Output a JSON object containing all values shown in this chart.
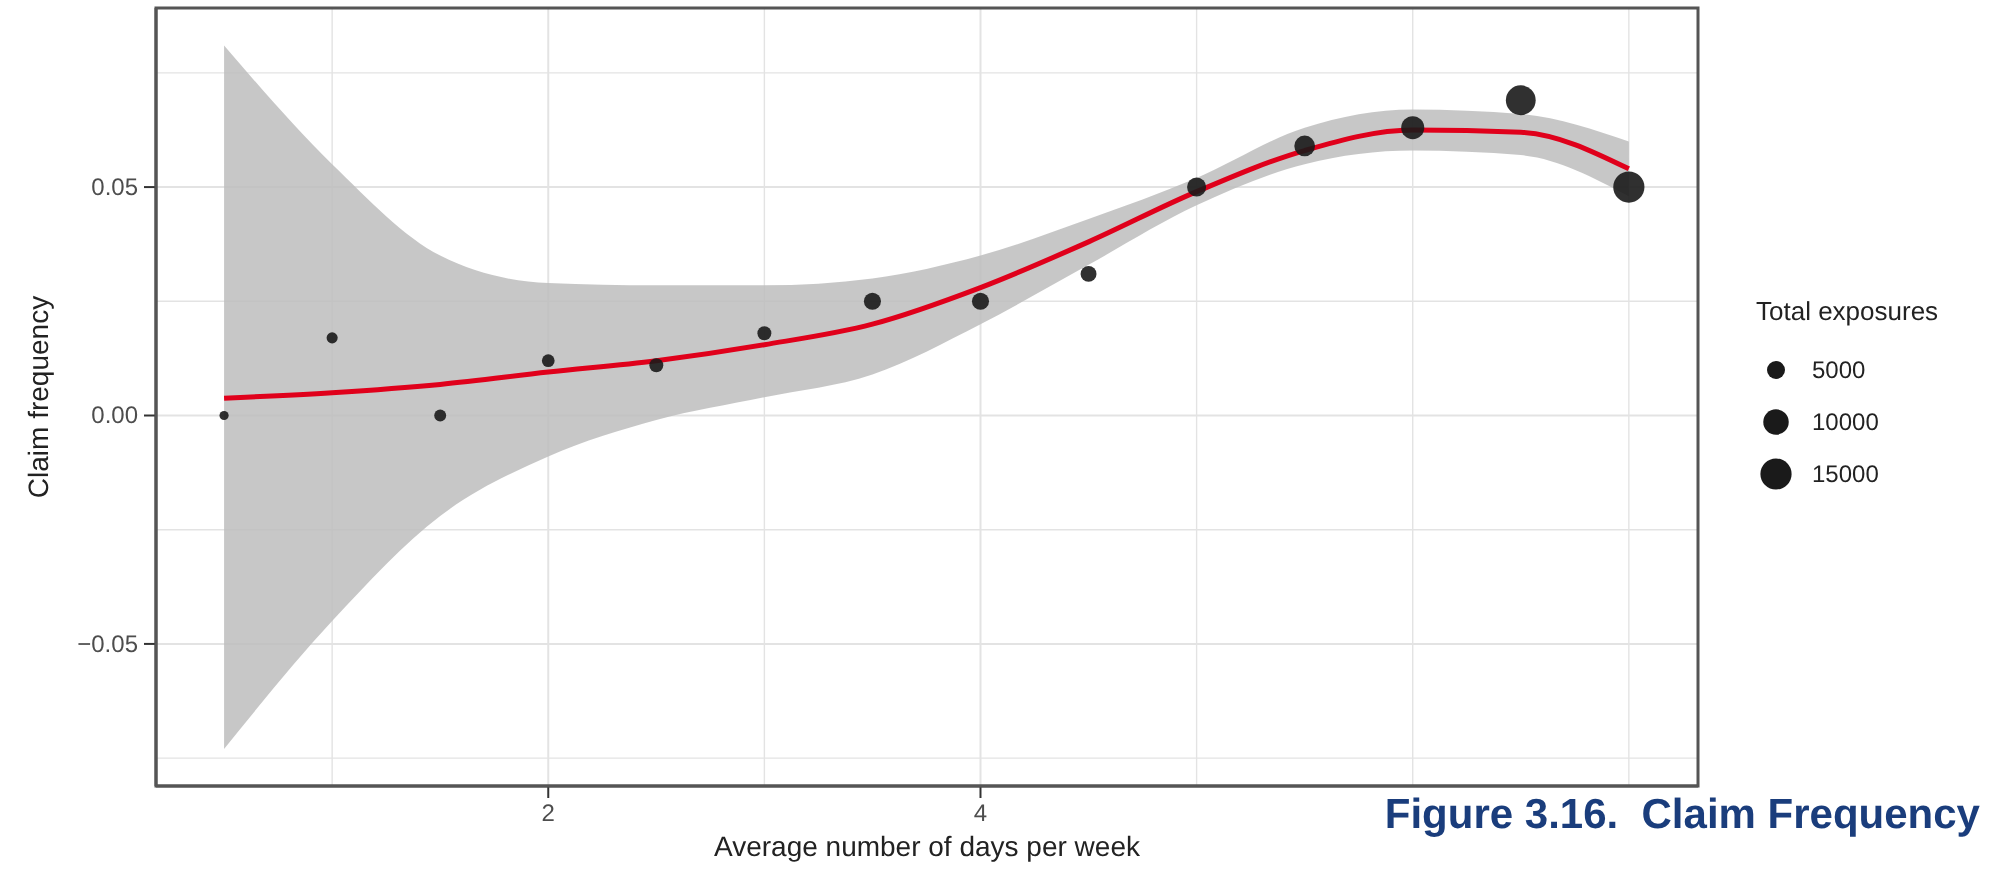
{
  "chart_data": {
    "type": "bubble",
    "title": "Figure 3.16.  Claim Frequency",
    "xlabel": "Average number of days per week",
    "ylabel": "Claim frequency",
    "legend_title": "Total exposures",
    "xlim": [
      0.185,
      7.32
    ],
    "ylim": [
      -0.0811,
      0.0892
    ],
    "xticks": [
      {
        "value": 1,
        "label": null
      },
      2,
      {
        "value": 3,
        "label": null
      },
      4,
      {
        "value": 5,
        "label": null
      },
      {
        "value": 6,
        "label": null
      },
      {
        "value": 7,
        "label": null
      }
    ],
    "yticks": [
      {
        "value": -0.075,
        "label": null
      },
      {
        "value": -0.05,
        "label": "−0.05"
      },
      {
        "value": -0.025,
        "label": null
      },
      {
        "value": 0,
        "label": "0.00"
      },
      {
        "value": 0.025,
        "label": null
      },
      {
        "value": 0.05,
        "label": "0.05"
      },
      {
        "value": 0.075,
        "label": null
      }
    ],
    "grid": true,
    "size_legend": [
      5000,
      10000,
      15000
    ],
    "series": [
      {
        "type": "line",
        "color": "#e0001b",
        "x": [
          0.5,
          1,
          1.5,
          2,
          2.5,
          3,
          3.5,
          4,
          4.5,
          5,
          5.5,
          6,
          6.5,
          7
        ],
        "values": [
          0.0038,
          0.005,
          0.0068,
          0.0095,
          0.012,
          0.0155,
          0.02,
          0.028,
          0.038,
          0.049,
          0.058,
          0.0625,
          0.062,
          0.054
        ],
        "lower": [
          -0.073,
          -0.045,
          -0.022,
          -0.009,
          -0.001,
          0.004,
          0.009,
          0.02,
          0.033,
          0.046,
          0.055,
          0.058,
          0.057,
          0.048
        ],
        "upper": [
          0.081,
          0.055,
          0.035,
          0.029,
          0.0285,
          0.0285,
          0.03,
          0.035,
          0.043,
          0.052,
          0.063,
          0.067,
          0.066,
          0.06
        ]
      },
      {
        "color": "#1a1a1a",
        "x": [
          0.5,
          1,
          1.5,
          2,
          2.5,
          3,
          3.5,
          4,
          4.5,
          5,
          5.5,
          6,
          6.5,
          7
        ],
        "values": [
          0.0,
          0.017,
          0.0,
          0.012,
          0.011,
          0.018,
          0.025,
          0.025,
          0.031,
          0.05,
          0.059,
          0.063,
          0.069,
          0.05
        ],
        "sizes": [
          1300,
          1900,
          2200,
          2500,
          3000,
          3000,
          4500,
          4500,
          3900,
          5600,
          6600,
          8200,
          13700,
          15000
        ]
      }
    ]
  }
}
